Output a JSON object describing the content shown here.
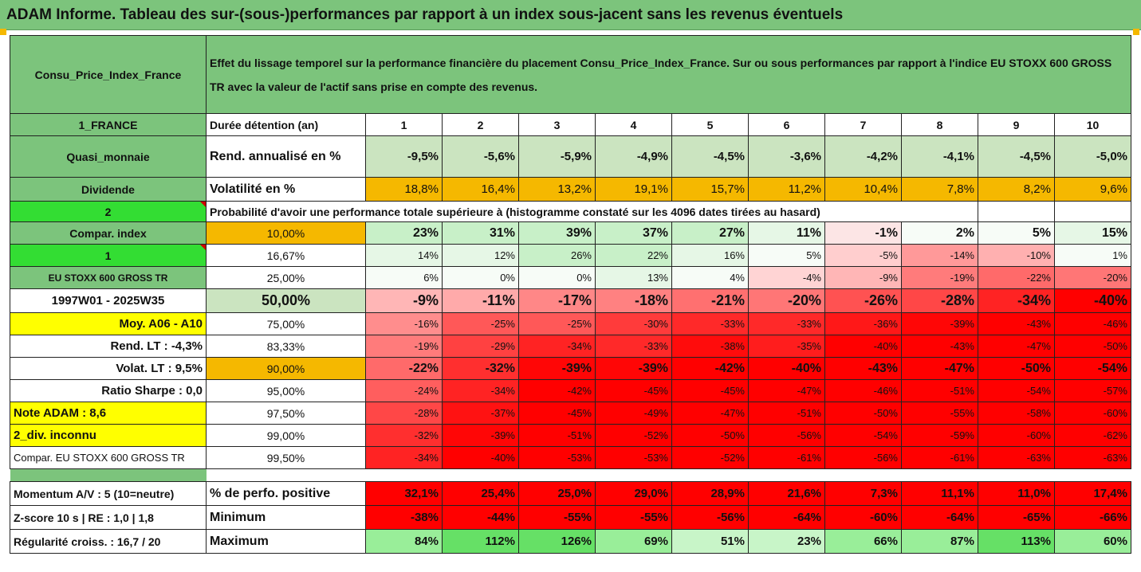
{
  "title": "ADAM Informe. Tableau des sur-(sous-)performances par rapport à un index sous-jacent sans les revenus éventuels",
  "header": {
    "left": "Consu_Price_Index_France",
    "description": "Effet du lissage temporel sur la performance financière du placement Consu_Price_Index_France. Sur ou sous performances par rapport à l'indice EU STOXX 600 GROSS TR avec la valeur de l'actif sans prise en compte des revenus."
  },
  "years_row": {
    "left": "1_FRANCE",
    "label": "Durée détention (an)",
    "years": [
      "1",
      "2",
      "3",
      "4",
      "5",
      "6",
      "7",
      "8",
      "9",
      "10"
    ]
  },
  "rend_row": {
    "left": "Quasi_monnaie",
    "label": "Rend. annualisé en %",
    "values": [
      "-9,5%",
      "-5,6%",
      "-5,9%",
      "-4,9%",
      "-4,5%",
      "-3,6%",
      "-4,2%",
      "-4,1%",
      "-4,5%",
      "-5,0%"
    ]
  },
  "vol_row": {
    "left": "Dividende",
    "label": "Volatilité en %",
    "values": [
      "18,8%",
      "16,4%",
      "13,2%",
      "19,1%",
      "15,7%",
      "11,2%",
      "10,4%",
      "7,8%",
      "8,2%",
      "9,6%"
    ]
  },
  "prob_row": {
    "left": "2",
    "text": "Probabilité d'avoir une performance totale supérieure à (histogramme constaté sur les 4096 dates tirées au hasard)"
  },
  "percentile_rows": [
    {
      "left": "Compar. index",
      "pct": "10,00%",
      "values": [
        "23%",
        "31%",
        "39%",
        "37%",
        "27%",
        "11%",
        "-1%",
        "2%",
        "5%",
        "15%"
      ]
    },
    {
      "left": "1",
      "pct": "16,67%",
      "values": [
        "14%",
        "12%",
        "26%",
        "22%",
        "16%",
        "5%",
        "-5%",
        "-14%",
        "-10%",
        "1%"
      ]
    },
    {
      "left": "EU STOXX 600 GROSS TR",
      "pct": "25,00%",
      "values": [
        "6%",
        "0%",
        "0%",
        "13%",
        "4%",
        "-4%",
        "-9%",
        "-19%",
        "-22%",
        "-20%"
      ]
    },
    {
      "left": "1997W01 - 2025W35",
      "pct": "50,00%",
      "values": [
        "-9%",
        "-11%",
        "-17%",
        "-18%",
        "-21%",
        "-20%",
        "-26%",
        "-28%",
        "-34%",
        "-40%"
      ]
    },
    {
      "left": "Moy. A06 - A10",
      "pct": "75,00%",
      "values": [
        "-16%",
        "-25%",
        "-25%",
        "-30%",
        "-33%",
        "-33%",
        "-36%",
        "-39%",
        "-43%",
        "-46%"
      ]
    },
    {
      "left": "Rend. LT :    -4,3%",
      "pct": "83,33%",
      "values": [
        "-19%",
        "-29%",
        "-34%",
        "-33%",
        "-38%",
        "-35%",
        "-40%",
        "-43%",
        "-47%",
        "-50%"
      ]
    },
    {
      "left": "Volat. LT :    9,5%",
      "pct": "90,00%",
      "values": [
        "-22%",
        "-32%",
        "-39%",
        "-39%",
        "-42%",
        "-40%",
        "-43%",
        "-47%",
        "-50%",
        "-54%"
      ]
    },
    {
      "left": "Ratio Sharpe :    0,0",
      "pct": "95,00%",
      "values": [
        "-24%",
        "-34%",
        "-42%",
        "-45%",
        "-45%",
        "-47%",
        "-46%",
        "-51%",
        "-54%",
        "-57%"
      ]
    },
    {
      "left": "Note ADAM : 8,6",
      "pct": "97,50%",
      "values": [
        "-28%",
        "-37%",
        "-45%",
        "-49%",
        "-47%",
        "-51%",
        "-50%",
        "-55%",
        "-58%",
        "-60%"
      ]
    },
    {
      "left": "2_div. inconnu",
      "pct": "99,00%",
      "values": [
        "-32%",
        "-39%",
        "-51%",
        "-52%",
        "-50%",
        "-56%",
        "-54%",
        "-59%",
        "-60%",
        "-62%"
      ]
    },
    {
      "left": "Compar. EU STOXX 600 GROSS TR",
      "pct": "99,50%",
      "values": [
        "-34%",
        "-40%",
        "-53%",
        "-53%",
        "-52%",
        "-61%",
        "-56%",
        "-61%",
        "-63%",
        "-63%"
      ]
    }
  ],
  "stats_rows": [
    {
      "left": "Momentum A/V : 5 (10=neutre)",
      "label": "% de perfo. positive",
      "values": [
        "32,1%",
        "25,4%",
        "25,0%",
        "29,0%",
        "28,9%",
        "21,6%",
        "7,3%",
        "11,1%",
        "11,0%",
        "17,4%"
      ]
    },
    {
      "left": "Z-score 10 s  |  RE : 1,0  |  1,8",
      "label": "Minimum",
      "values": [
        "-38%",
        "-44%",
        "-55%",
        "-55%",
        "-56%",
        "-64%",
        "-60%",
        "-64%",
        "-65%",
        "-66%"
      ]
    },
    {
      "left": "Régularité croiss. : 16,7 / 20",
      "label": "Maximum",
      "values": [
        "84%",
        "112%",
        "126%",
        "69%",
        "51%",
        "23%",
        "66%",
        "87%",
        "113%",
        "60%"
      ]
    }
  ],
  "colors": {
    "header_green": "#7cc47c",
    "orange": "#f5b800",
    "bright_green": "#33dd33",
    "yellow": "#ffff00",
    "red_text": "#e00000"
  }
}
